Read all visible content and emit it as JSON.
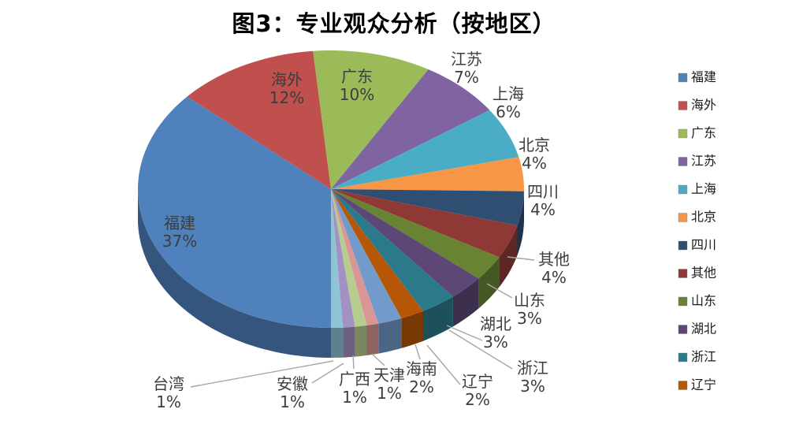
{
  "title": "图3：专业观众分析（按地区）",
  "chart_data": {
    "type": "pie",
    "style": "3d-pie",
    "title": "图3：专业观众分析（按地区）",
    "unit": "%",
    "start_angle_deg": 180,
    "direction": "clockwise",
    "label_format": "category + percent",
    "categories": [
      "福建",
      "海外",
      "广东",
      "江苏",
      "上海",
      "北京",
      "四川",
      "其他",
      "山东",
      "湖北",
      "浙江",
      "辽宁",
      "海南",
      "天津",
      "广西",
      "安徽",
      "台湾"
    ],
    "values": [
      37,
      12,
      10,
      7,
      6,
      4,
      4,
      4,
      3,
      3,
      3,
      2,
      2,
      1,
      1,
      1,
      1
    ],
    "colors": [
      "#4F81BD",
      "#C0504D",
      "#9BBB59",
      "#8064A2",
      "#4BACC6",
      "#F79646",
      "#2E4E72",
      "#8F3936",
      "#688433",
      "#5C4776",
      "#2B7A8C",
      "#B65708",
      "#729ACA",
      "#D99694",
      "#B7CC8F",
      "#A292C4",
      "#8FC3D6"
    ],
    "legend": {
      "position": "right",
      "items": [
        "福建",
        "海外",
        "广东",
        "江苏",
        "上海",
        "北京",
        "四川",
        "其他",
        "山东",
        "湖北",
        "浙江",
        "辽宁"
      ]
    }
  }
}
